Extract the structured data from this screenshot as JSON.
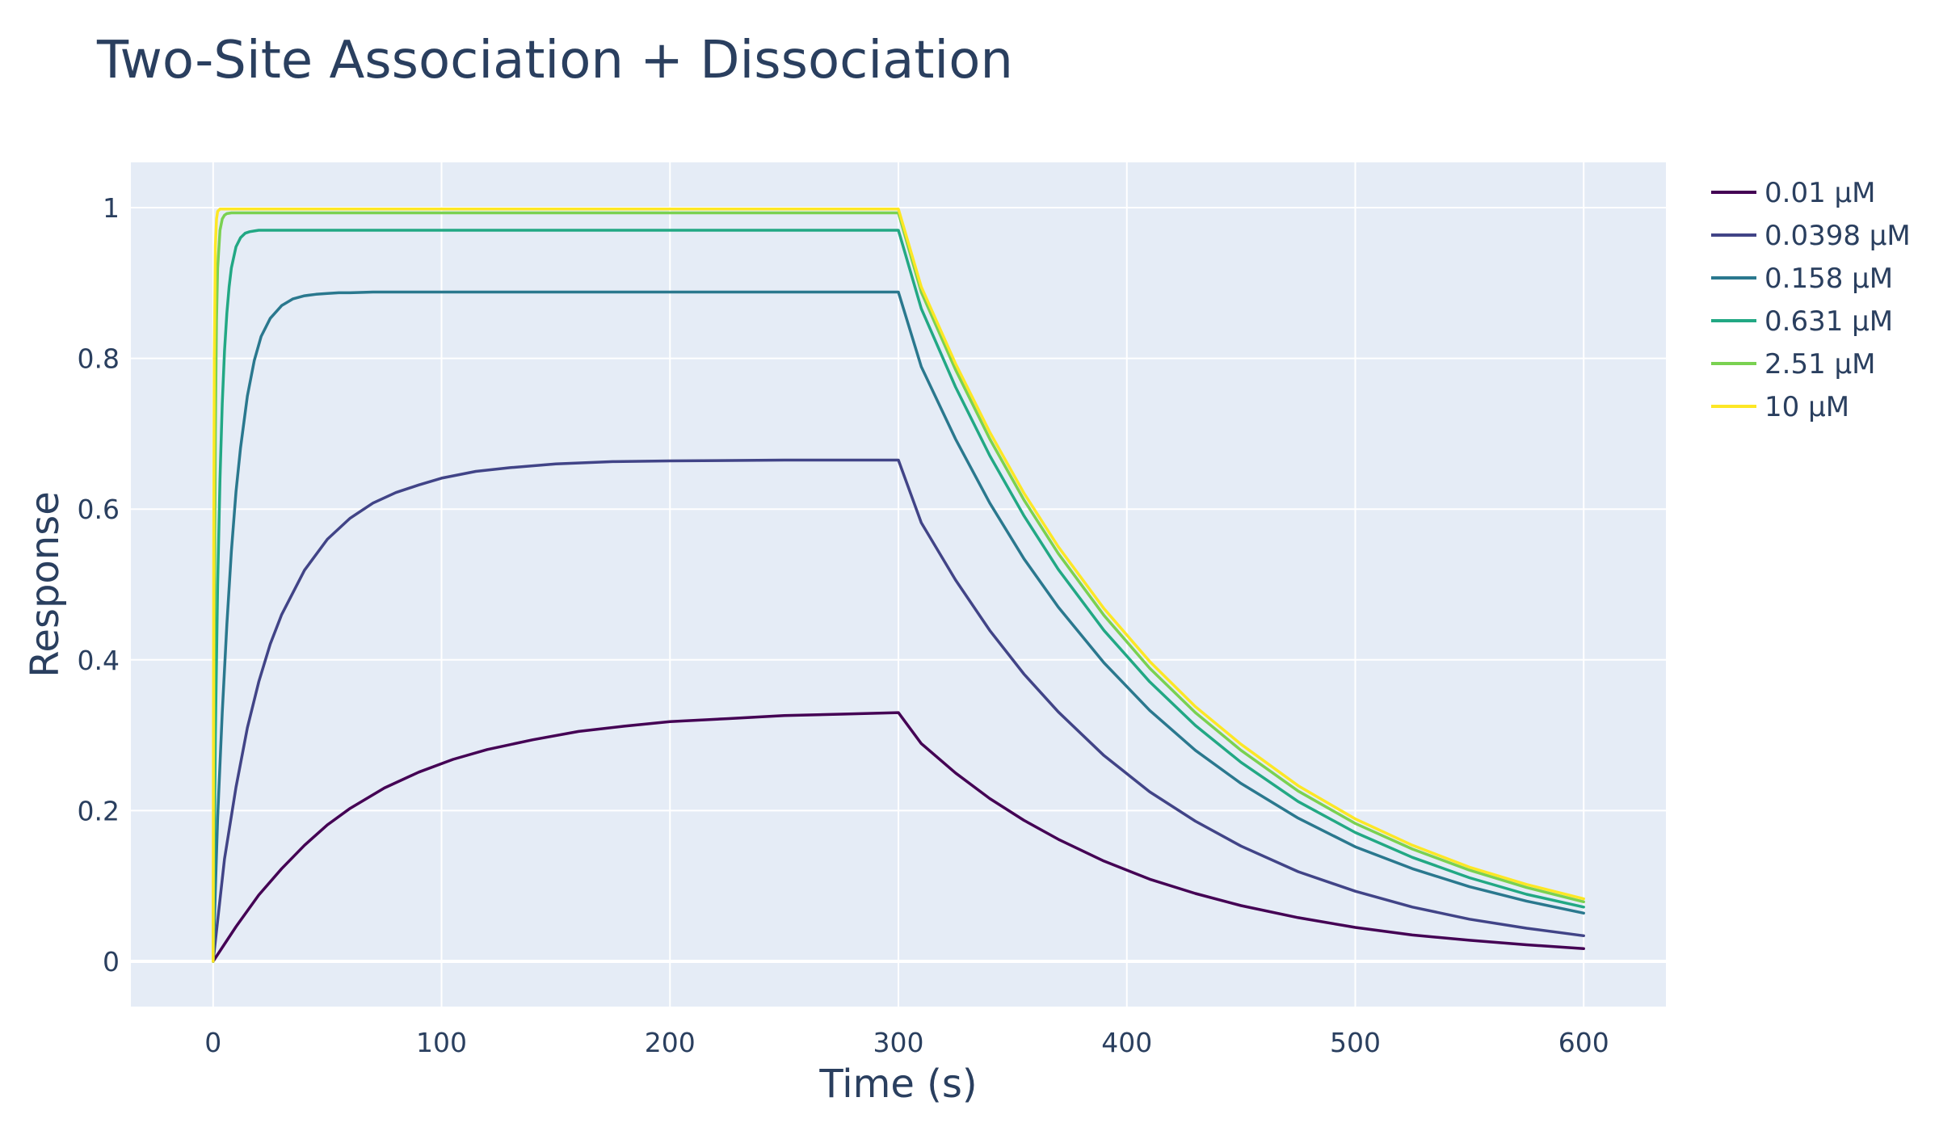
{
  "chart_data": {
    "type": "line",
    "title": "Two-Site Association + Dissociation",
    "xlabel": "Time (s)",
    "ylabel": "Response",
    "xlim": [
      -36,
      636
    ],
    "ylim": [
      -0.06,
      1.06
    ],
    "xticks": [
      0,
      100,
      200,
      300,
      400,
      500,
      600
    ],
    "yticks": [
      0,
      0.2,
      0.4,
      0.6,
      0.8,
      1
    ],
    "xtick_labels": [
      "0",
      "100",
      "200",
      "300",
      "400",
      "500",
      "600"
    ],
    "ytick_labels": [
      "0",
      "0.2",
      "0.4",
      "0.6",
      "0.8",
      "1"
    ],
    "grid": true,
    "legend_position": "top-right",
    "series": [
      {
        "name": "0.01 µM",
        "color": "#440154",
        "x": [
          0,
          10,
          20,
          30,
          40,
          50,
          60,
          75,
          90,
          105,
          120,
          140,
          160,
          180,
          200,
          225,
          250,
          275,
          300,
          310,
          325,
          340,
          355,
          370,
          390,
          410,
          430,
          450,
          475,
          500,
          525,
          550,
          575,
          600
        ],
        "y": [
          0,
          0.046,
          0.088,
          0.123,
          0.154,
          0.181,
          0.203,
          0.23,
          0.251,
          0.268,
          0.281,
          0.294,
          0.305,
          0.312,
          0.318,
          0.322,
          0.326,
          0.328,
          0.33,
          0.289,
          0.25,
          0.216,
          0.187,
          0.162,
          0.133,
          0.109,
          0.09,
          0.074,
          0.058,
          0.045,
          0.035,
          0.028,
          0.022,
          0.017
        ]
      },
      {
        "name": "0.0398 µM",
        "color": "#414487",
        "x": [
          0,
          5,
          10,
          15,
          20,
          25,
          30,
          40,
          50,
          60,
          70,
          80,
          90,
          100,
          115,
          130,
          150,
          175,
          200,
          250,
          300,
          310,
          325,
          340,
          355,
          370,
          390,
          410,
          430,
          450,
          475,
          500,
          525,
          550,
          575,
          600
        ],
        "y": [
          0,
          0.136,
          0.231,
          0.31,
          0.371,
          0.421,
          0.46,
          0.519,
          0.56,
          0.588,
          0.608,
          0.622,
          0.632,
          0.641,
          0.65,
          0.655,
          0.66,
          0.663,
          0.664,
          0.665,
          0.665,
          0.582,
          0.506,
          0.439,
          0.381,
          0.331,
          0.273,
          0.225,
          0.186,
          0.153,
          0.119,
          0.093,
          0.072,
          0.056,
          0.044,
          0.034
        ]
      },
      {
        "name": "0.158 µM",
        "color": "#2a788e",
        "x": [
          0,
          2,
          4,
          6,
          8,
          10,
          12,
          15,
          18,
          21,
          25,
          30,
          35,
          40,
          45,
          50,
          55,
          60,
          70,
          80,
          90,
          100,
          150,
          200,
          250,
          300,
          310,
          325,
          340,
          355,
          370,
          390,
          410,
          430,
          450,
          475,
          500,
          525,
          550,
          575,
          600
        ],
        "y": [
          0,
          0.191,
          0.33,
          0.447,
          0.544,
          0.623,
          0.681,
          0.75,
          0.797,
          0.829,
          0.853,
          0.87,
          0.879,
          0.883,
          0.885,
          0.886,
          0.887,
          0.887,
          0.888,
          0.888,
          0.888,
          0.888,
          0.888,
          0.888,
          0.888,
          0.888,
          0.789,
          0.693,
          0.608,
          0.534,
          0.47,
          0.396,
          0.333,
          0.28,
          0.236,
          0.19,
          0.152,
          0.123,
          0.099,
          0.08,
          0.064
        ]
      },
      {
        "name": "0.631 µM",
        "color": "#22a884",
        "x": [
          0,
          1,
          2,
          3,
          4,
          5,
          6,
          7,
          8,
          10,
          12,
          14,
          16,
          18,
          20,
          25,
          30,
          40,
          60,
          100,
          150,
          200,
          250,
          300,
          310,
          325,
          340,
          355,
          370,
          390,
          410,
          430,
          450,
          475,
          500,
          525,
          550,
          575,
          600
        ],
        "y": [
          0,
          0.3,
          0.5,
          0.64,
          0.74,
          0.81,
          0.86,
          0.895,
          0.92,
          0.948,
          0.96,
          0.966,
          0.968,
          0.969,
          0.97,
          0.97,
          0.97,
          0.97,
          0.97,
          0.97,
          0.97,
          0.97,
          0.97,
          0.97,
          0.866,
          0.762,
          0.671,
          0.591,
          0.52,
          0.439,
          0.371,
          0.313,
          0.264,
          0.212,
          0.171,
          0.138,
          0.111,
          0.089,
          0.072
        ]
      },
      {
        "name": "2.51 µM",
        "color": "#7ad151",
        "x": [
          0,
          0.5,
          1,
          1.5,
          2,
          3,
          4,
          5,
          6,
          8,
          10,
          15,
          20,
          50,
          100,
          150,
          200,
          250,
          300,
          310,
          325,
          340,
          355,
          370,
          390,
          410,
          430,
          450,
          475,
          500,
          525,
          550,
          575,
          600
        ],
        "y": [
          0,
          0.42,
          0.7,
          0.85,
          0.92,
          0.97,
          0.985,
          0.99,
          0.992,
          0.993,
          0.993,
          0.993,
          0.993,
          0.993,
          0.993,
          0.993,
          0.993,
          0.993,
          0.993,
          0.888,
          0.785,
          0.693,
          0.612,
          0.541,
          0.459,
          0.389,
          0.33,
          0.28,
          0.226,
          0.183,
          0.149,
          0.121,
          0.098,
          0.079
        ]
      },
      {
        "name": "10 µM",
        "color": "#fde725",
        "x": [
          0,
          0.25,
          0.5,
          1,
          1.5,
          2,
          3,
          4,
          5,
          10,
          50,
          100,
          150,
          200,
          250,
          300,
          310,
          325,
          340,
          355,
          370,
          390,
          410,
          430,
          450,
          475,
          500,
          525,
          550,
          575,
          600
        ],
        "y": [
          0,
          0.55,
          0.8,
          0.95,
          0.985,
          0.995,
          0.998,
          0.998,
          0.998,
          0.998,
          0.998,
          0.998,
          0.998,
          0.998,
          0.998,
          0.998,
          0.895,
          0.793,
          0.702,
          0.621,
          0.55,
          0.468,
          0.398,
          0.338,
          0.288,
          0.233,
          0.189,
          0.154,
          0.125,
          0.102,
          0.083
        ]
      }
    ]
  }
}
